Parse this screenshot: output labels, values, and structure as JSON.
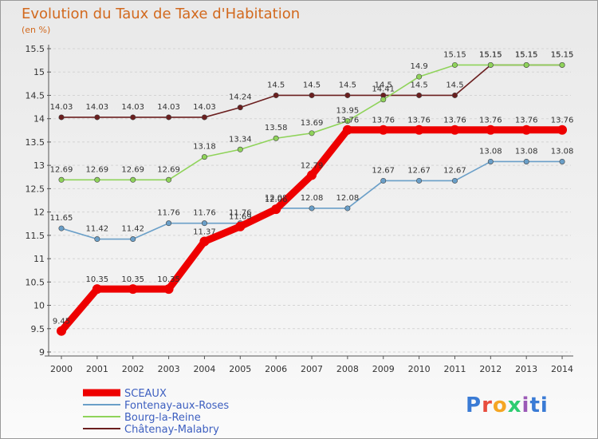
{
  "header": {
    "title": "Evolution du Taux de Taxe d'Habitation",
    "subtitle": "(en %)"
  },
  "brand": "Proxiti",
  "chart_data": {
    "type": "line",
    "title": "Evolution du Taux de Taxe d'Habitation",
    "subtitle": "(en %)",
    "xlabel": "",
    "ylabel": "",
    "ylim": [
      9,
      15.5
    ],
    "yticks": [
      "9",
      "9.5",
      "10",
      "10.5",
      "11",
      "11.5",
      "12",
      "12.5",
      "13",
      "13.5",
      "14",
      "14.5",
      "15",
      "15.5"
    ],
    "grid": true,
    "legend_position": "bottom-left",
    "categories": [
      "2000",
      "2001",
      "2002",
      "2003",
      "2004",
      "2005",
      "2006",
      "2007",
      "2008",
      "2009",
      "2010",
      "2011",
      "2012",
      "2013",
      "2014"
    ],
    "series": [
      {
        "name": "Châtenay-Malabry",
        "color": "#6b1f1f",
        "values": [
          14.03,
          14.03,
          14.03,
          14.03,
          14.03,
          14.24,
          14.5,
          14.5,
          14.5,
          14.5,
          14.5,
          14.5,
          15.15,
          15.15,
          15.15
        ]
      },
      {
        "name": "Bourg-la-Reine",
        "color": "#8fd35a",
        "values": [
          12.69,
          12.69,
          12.69,
          12.69,
          13.18,
          13.34,
          13.58,
          13.69,
          13.95,
          14.41,
          14.9,
          15.15,
          15.15,
          15.15,
          15.15
        ]
      },
      {
        "name": "Fontenay-aux-Roses",
        "color": "#6a9fc8",
        "values": [
          11.65,
          11.42,
          11.42,
          11.76,
          11.76,
          11.76,
          12.08,
          12.08,
          12.08,
          12.67,
          12.67,
          12.67,
          13.08,
          13.08,
          13.08
        ]
      },
      {
        "name": "SCEAUX",
        "color": "#ee0000",
        "values": [
          9.45,
          10.35,
          10.35,
          10.35,
          11.37,
          11.69,
          12.06,
          12.79,
          13.76,
          13.76,
          13.76,
          13.76,
          13.76,
          13.76,
          13.76
        ]
      }
    ]
  }
}
